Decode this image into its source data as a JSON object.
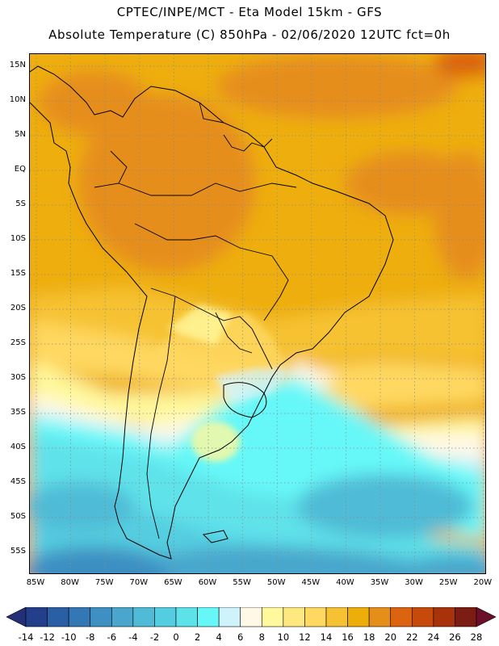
{
  "header": {
    "line1": "CPTEC/INPE/MCT -  Eta Model 15km - GFS",
    "line2": "Absolute Temperature (C) 850hPa - 02/06/2020 12UTC fct=0h"
  },
  "map": {
    "lat_ticks": [
      "15N",
      "10N",
      "5N",
      "EQ",
      "5S",
      "10S",
      "15S",
      "20S",
      "25S",
      "30S",
      "35S",
      "40S",
      "45S",
      "50S",
      "55S"
    ],
    "lat_values": [
      15,
      10,
      5,
      0,
      -5,
      -10,
      -15,
      -20,
      -25,
      -30,
      -35,
      -40,
      -45,
      -50,
      -55
    ],
    "lon_ticks": [
      "85W",
      "80W",
      "75W",
      "70W",
      "65W",
      "60W",
      "55W",
      "50W",
      "45W",
      "40W",
      "35W",
      "30W",
      "25W",
      "20W"
    ],
    "lon_values": [
      -85,
      -80,
      -75,
      -70,
      -65,
      -60,
      -55,
      -50,
      -45,
      -40,
      -35,
      -30,
      -25,
      -20
    ],
    "gridlines": true
  },
  "colorbar": {
    "labels": [
      "-14",
      "-12",
      "-10",
      "-8",
      "-6",
      "-4",
      "-2",
      "0",
      "2",
      "4",
      "6",
      "8",
      "10",
      "12",
      "14",
      "16",
      "18",
      "20",
      "22",
      "24",
      "26",
      "28"
    ],
    "colors": [
      "#233e8b",
      "#2a5ea5",
      "#3377b5",
      "#3e8fc2",
      "#4aa6cc",
      "#4fbbd6",
      "#55cde0",
      "#5ee2ea",
      "#66f8f8",
      "#cef3fb",
      "#fff8e6",
      "#fff89c",
      "#ffe880",
      "#fed860",
      "#f6c233",
      "#eeae09",
      "#e68e1a",
      "#dc6310",
      "#c74a0a",
      "#a8320a",
      "#7b1d12"
    ],
    "left_arrow_color": "#233077",
    "right_arrow_color": "#6b0f2a"
  }
}
